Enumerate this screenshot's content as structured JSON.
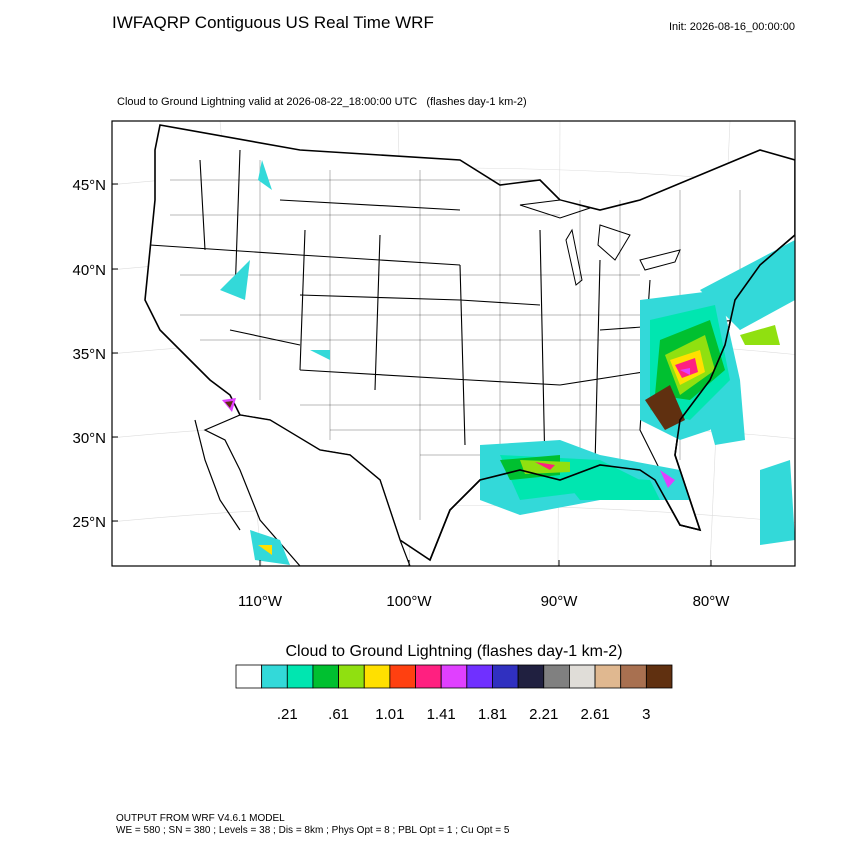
{
  "header": {
    "title": "IWFAQRP Contiguous US Real Time WRF",
    "init": "Init: 2026-08-16_00:00:00"
  },
  "map": {
    "subtitle": "Cloud to Ground Lightning valid at 2026-08-22_18:00:00 UTC   (flashes day-1 km-2)",
    "lat_labels": [
      "45°N",
      "40°N",
      "35°N",
      "30°N",
      "25°N"
    ],
    "lon_labels": [
      "110°W",
      "100°W",
      "90°W",
      "80°W"
    ]
  },
  "colorbar": {
    "title": "Cloud to Ground Lightning  (flashes day-1 km-2)",
    "colors": [
      "#ffffff",
      "#33d9d9",
      "#00e6b0",
      "#00c030",
      "#90e010",
      "#ffe000",
      "#ff4010",
      "#ff2080",
      "#e040ff",
      "#7030ff",
      "#3030c0",
      "#202040",
      "#808080",
      "#e0ddd8",
      "#e0b890",
      "#a87050",
      "#603010"
    ],
    "labels": [
      ".21",
      ".61",
      "1.01",
      "1.41",
      "1.81",
      "2.21",
      "2.61",
      "3"
    ]
  },
  "footer": {
    "line1": "OUTPUT FROM WRF V4.6.1 MODEL",
    "line2": "WE = 580 ; SN = 380 ; Levels = 38 ; Dis = 8km ; Phys Opt = 8 ; PBL Opt = 1 ; Cu Opt = 5"
  }
}
